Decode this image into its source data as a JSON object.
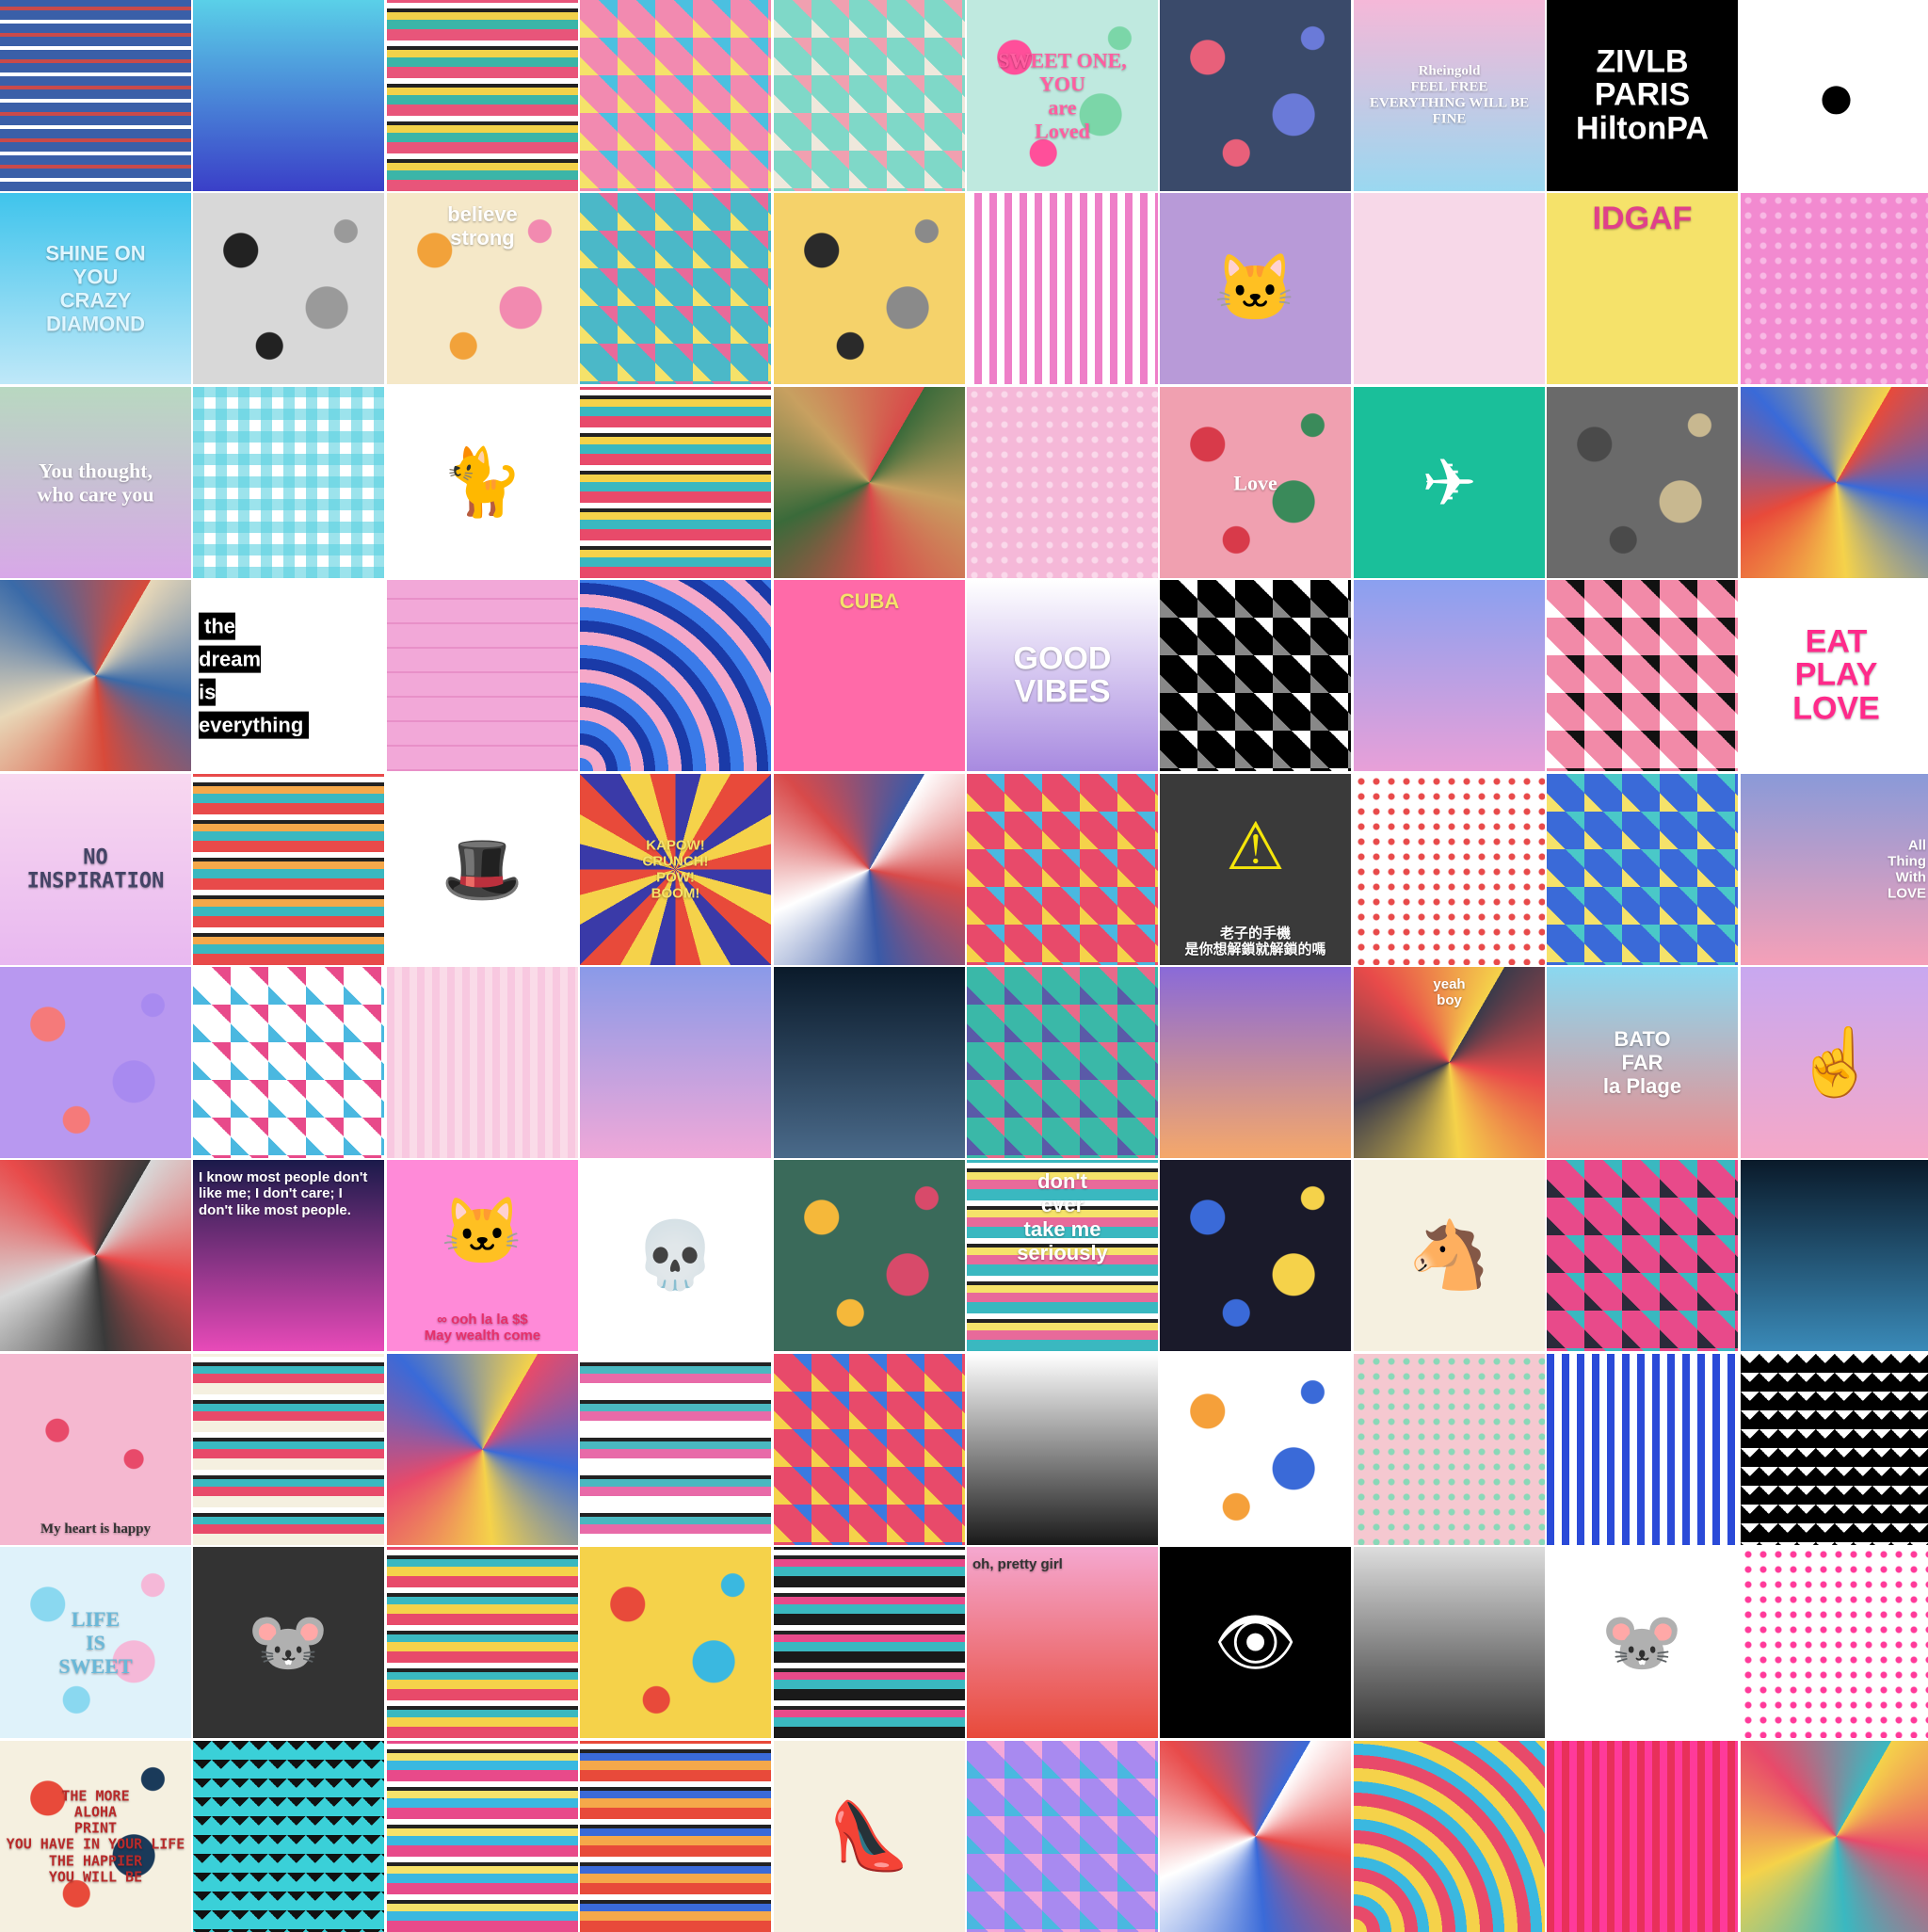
{
  "mosaic": {
    "rows": 10,
    "cols": 10,
    "tiles": [
      {
        "style": "plaid",
        "c1": "#3a5fa8",
        "c2": "#c94a4a",
        "c3": "#ffffff"
      },
      {
        "style": "gradient",
        "c1": "#5ad0e8",
        "c2": "#3a3fc8"
      },
      {
        "style": "tribal",
        "c1": "#e8557a",
        "c2": "#3bb5a8",
        "c3": "#f2d24a"
      },
      {
        "style": "triangles",
        "c1": "#f28ab0",
        "c2": "#4bc0e0",
        "c3": "#f5e26a"
      },
      {
        "style": "triangles",
        "c1": "#7fd8c8",
        "c2": "#f0a0b0",
        "c3": "#efe8dc"
      },
      {
        "style": "flowers",
        "c1": "#ff4f9a",
        "c2": "#7bd6a8",
        "c3": "#bfe9df",
        "text": "SWEET ONE,\nYOU\nare\nLoved",
        "textColor": "#ff5ea0",
        "font": "serif"
      },
      {
        "style": "flowers",
        "c1": "#e8607a",
        "c2": "#6a7ad8",
        "c3": "#3a4a6a"
      },
      {
        "style": "gradient",
        "c1": "#f5b8d8",
        "c2": "#9ad8f0",
        "text": "Rheingold\nFEEL FREE\nEVERYTHING WILL BE FINE",
        "textColor": "#ffffff",
        "font": "serif",
        "size": "small"
      },
      {
        "style": "text-bw",
        "c1": "#000000",
        "c2": "#ffffff",
        "text": "ZIVLB\nPARIS\nHiltonPA",
        "textColor": "#ffffff",
        "size": "big"
      },
      {
        "style": "icon",
        "c1": "#ffffff",
        "c2": "#000000",
        "icon": "mickey-icon",
        "glyph": "●"
      },
      {
        "style": "gradient",
        "c1": "#3fc4ec",
        "c2": "#bfe8f8",
        "text": "SHINE ON\nYOU\nCRAZY\nDIAMOND",
        "textColor": "#dff6ff"
      },
      {
        "style": "flowers",
        "c1": "#222222",
        "c2": "#9a9a9a",
        "c3": "#d8d8d8"
      },
      {
        "style": "flowers",
        "c1": "#f2a23a",
        "c2": "#f28ab0",
        "c3": "#f5e8c8",
        "text": "believe\nstrong",
        "textColor": "#ffffff",
        "position": "top"
      },
      {
        "style": "triangles",
        "c1": "#4bb8c8",
        "c2": "#e86a9a",
        "c3": "#f5e26a"
      },
      {
        "style": "flowers",
        "c1": "#2a2a2a",
        "c2": "#8a8a8a",
        "c3": "#f5d26a"
      },
      {
        "style": "stripes",
        "c1": "#ffffff",
        "c2": "#ee7fc8"
      },
      {
        "style": "icon",
        "c1": "#b89ad8",
        "c2": "#333333",
        "icon": "cat-icon",
        "glyph": "🐱"
      },
      {
        "style": "solid",
        "c1": "#f7d8e8",
        "c2": "#f2c8dc"
      },
      {
        "style": "text-bw",
        "c1": "#f5e26a",
        "c2": "#e04a8a",
        "text": "IDGAF",
        "textColor": "#e0408a",
        "size": "big",
        "position": "top"
      },
      {
        "style": "dots",
        "c1": "#f28ad0",
        "c2": "#f8b8e4"
      },
      {
        "style": "gradient",
        "c1": "#b8d8c0",
        "c2": "#d8a8e8",
        "text": "You thought,\nwho care you",
        "textColor": "#ffffff",
        "font": "serif"
      },
      {
        "style": "gingham",
        "c1": "#5ad0e0",
        "c2": "#ffffff"
      },
      {
        "style": "icon",
        "c1": "#ffffff",
        "c2": "#111111",
        "icon": "cat-icon",
        "glyph": "🐈"
      },
      {
        "style": "tribal",
        "c1": "#e84a6a",
        "c2": "#3ab8c0",
        "c3": "#f5d24a"
      },
      {
        "style": "collage",
        "c1": "#3a6a3a",
        "c2": "#c8a060",
        "c3": "#d84a4a"
      },
      {
        "style": "dots",
        "c1": "#f5b8d8",
        "c2": "#fad8ea"
      },
      {
        "style": "flowers",
        "c1": "#d83a4a",
        "c2": "#3a8a5a",
        "c3": "#f0a0b0",
        "text": "Love",
        "textColor": "#ffffff",
        "font": "serif"
      },
      {
        "style": "icon",
        "c1": "#1abf9a",
        "c2": "#ffffff",
        "icon": "paper-crane-icon",
        "glyph": "✈"
      },
      {
        "style": "flowers",
        "c1": "#4a4a4a",
        "c2": "#c8b890",
        "c3": "#6a6a6a"
      },
      {
        "style": "collage",
        "c1": "#e84a3a",
        "c2": "#3a6ad8",
        "c3": "#f5d24a"
      },
      {
        "style": "collage",
        "c1": "#e8d8b8",
        "c2": "#3a6aa8",
        "c3": "#d84a3a"
      },
      {
        "style": "text-bw",
        "c1": "#ffffff",
        "c2": "#000000",
        "text": "the\ndream\nis\neverything",
        "textColor": "#ffffff",
        "boxed": true,
        "align": "left"
      },
      {
        "style": "brick",
        "c1": "#f2a8d8",
        "c2": "#e890c8"
      },
      {
        "style": "waves",
        "c1": "#3a7ae8",
        "c2": "#f5a8c8",
        "c3": "#1a3aa8"
      },
      {
        "style": "solid",
        "c1": "#ff6aa8",
        "c2": "#f5d24a",
        "text": "CUBA",
        "textColor": "#f5e26a",
        "position": "top"
      },
      {
        "style": "gradient",
        "c1": "#ffffff",
        "c2": "#a88ae0",
        "text": "GOOD\nVIBES",
        "textColor": "#ffffff",
        "size": "big"
      },
      {
        "style": "triangles",
        "c1": "#000000",
        "c2": "#ffffff",
        "c3": "#888888"
      },
      {
        "style": "gradient",
        "c1": "#8aa0f0",
        "c2": "#e8a0d8"
      },
      {
        "style": "triangles",
        "c1": "#f28aa8",
        "c2": "#111111",
        "c3": "#ffffff"
      },
      {
        "style": "text-bw",
        "c1": "#ffffff",
        "c2": "#ff2a8a",
        "text": "EAT\nPLAY\nLOVE",
        "textColor": "#ff2a8a",
        "size": "big"
      },
      {
        "style": "gradient",
        "c1": "#f8d8f0",
        "c2": "#e8b8f0",
        "text": "NO\nINSPIRATION",
        "textColor": "#444466",
        "font": "mono"
      },
      {
        "style": "tribal",
        "c1": "#e84a4a",
        "c2": "#3ab8c0",
        "c3": "#f5a84a"
      },
      {
        "style": "icon",
        "c1": "#ffffff",
        "c2": "#111111",
        "icon": "cat-top-hat-icon",
        "glyph": "🎩"
      },
      {
        "style": "comic",
        "c1": "#3a3aa8",
        "c2": "#f5d24a",
        "c3": "#e84a3a",
        "text": "KAPOW!\nCRUNCH!\nPOW!\nBOOM!",
        "textColor": "#f5e26a",
        "size": "small"
      },
      {
        "style": "collage",
        "c1": "#ffffff",
        "c2": "#d84a4a",
        "c3": "#3a5aa8"
      },
      {
        "style": "triangles",
        "c1": "#e84a6a",
        "c2": "#4ab8e0",
        "c3": "#f5d24a"
      },
      {
        "style": "solid",
        "c1": "#3a3a3a",
        "c2": "#f5e60a",
        "text": "老子的手機\n是你想解鎖就解鎖的嗎",
        "textColor": "#ffffff",
        "position": "bottom",
        "size": "small",
        "icon": "warning-icon",
        "glyph": "⚠"
      },
      {
        "style": "dots",
        "c1": "#ffffff",
        "c2": "#e84a4a"
      },
      {
        "style": "triangles",
        "c1": "#3a6ad8",
        "c2": "#4ac8c8",
        "c3": "#f5e26a"
      },
      {
        "style": "gradient",
        "c1": "#8a9ad8",
        "c2": "#f5a0b8",
        "text": "All\nThing\nWith\nLOVE",
        "textColor": "#ffffff",
        "align": "right",
        "size": "small"
      },
      {
        "style": "flowers",
        "c1": "#f57a7a",
        "c2": "#a88af0",
        "c3": "#b898f0"
      },
      {
        "style": "triangles",
        "c1": "#ffffff",
        "c2": "#e84a8a",
        "c3": "#4ab8e0"
      },
      {
        "style": "stripes",
        "c1": "#f8c8e0",
        "c2": "#fadbe8"
      },
      {
        "style": "gradient",
        "c1": "#8a9ae8",
        "c2": "#f0a8d8"
      },
      {
        "style": "gradient",
        "c1": "#0a1a2a",
        "c2": "#4a6a8a"
      },
      {
        "style": "triangles",
        "c1": "#3ab8a8",
        "c2": "#e86a8a",
        "c3": "#5a5aa8"
      },
      {
        "style": "gradient",
        "c1": "#8a6ad8",
        "c2": "#f5a86a"
      },
      {
        "style": "collage",
        "c1": "#3a3a4a",
        "c2": "#e84a4a",
        "c3": "#f5d24a",
        "text": "yeah\nboy",
        "textColor": "#ffffff",
        "position": "top",
        "size": "small"
      },
      {
        "style": "gradient",
        "c1": "#8ad8f0",
        "c2": "#f08a8a",
        "text": "BATO\nFAR\nla Plage",
        "textColor": "#ffffff"
      },
      {
        "style": "gradient",
        "c1": "#c8a8f0",
        "c2": "#f5a8c8",
        "icon": "cursor-hand-icon",
        "glyph": "☝"
      },
      {
        "style": "collage",
        "c1": "#d8d8d8",
        "c2": "#e84a4a",
        "c3": "#3a3a3a"
      },
      {
        "style": "gradient",
        "c1": "#1a1a4a",
        "c2": "#e84ab8",
        "text": "I know most people don't\nlike me; I don't care; I\ndon't like most people.",
        "textColor": "#ffffff",
        "position": "top",
        "size": "small",
        "align": "left"
      },
      {
        "style": "solid",
        "c1": "#ff8ad8",
        "c2": "#ffffff",
        "text": "∞ ooh la la $$\nMay wealth come",
        "textColor": "#e8306a",
        "position": "bottom",
        "size": "small",
        "icon": "lucky-cat-icon",
        "glyph": "🐱"
      },
      {
        "style": "icon",
        "c1": "#ffffff",
        "c2": "#222222",
        "icon": "skull-icon",
        "glyph": "💀"
      },
      {
        "style": "flowers",
        "c1": "#f5b83a",
        "c2": "#d84a6a",
        "c3": "#3a6a5a"
      },
      {
        "style": "tribal",
        "c1": "#3ab8c0",
        "c2": "#e86a9a",
        "c3": "#f5e26a",
        "text": "don't\never\ntake me\nseriously",
        "textColor": "#ffffff",
        "position": "top"
      },
      {
        "style": "flowers",
        "c1": "#3a6ad8",
        "c2": "#f5d24a",
        "c3": "#1a1a2a"
      },
      {
        "style": "icon",
        "c1": "#f5f0e0",
        "c2": "#3a5a9a",
        "icon": "horse-icon",
        "glyph": "🐴"
      },
      {
        "style": "triangles",
        "c1": "#e84a8a",
        "c2": "#3ab8c0",
        "c3": "#2a2a3a"
      },
      {
        "style": "gradient",
        "c1": "#0a1a2a",
        "c2": "#3a8ab8"
      },
      {
        "style": "hearts",
        "c1": "#f5b8d0",
        "c2": "#e84a6a",
        "text": "My heart is happy",
        "textColor": "#333333",
        "position": "bottom",
        "size": "small",
        "font": "serif"
      },
      {
        "style": "tribal",
        "c1": "#f5f0e0",
        "c2": "#e84a6a",
        "c3": "#3ab8c0"
      },
      {
        "style": "collage",
        "c1": "#e84a6a",
        "c2": "#3a6ad8",
        "c3": "#f5d24a"
      },
      {
        "style": "tribal",
        "c1": "#ffffff",
        "c2": "#e86aa8",
        "c3": "#4ab8c0"
      },
      {
        "style": "triangles",
        "c1": "#e84a6a",
        "c2": "#3a7ae0",
        "c3": "#f5d24a"
      },
      {
        "style": "gradient",
        "c1": "#ffffff",
        "c2": "#1a1a1a"
      },
      {
        "style": "flowers",
        "c1": "#f5a03a",
        "c2": "#3a6ad8",
        "c3": "#ffffff"
      },
      {
        "style": "dots",
        "c1": "#f5c8d0",
        "c2": "#8ad8b8"
      },
      {
        "style": "stripes",
        "c1": "#2a4ad8",
        "c2": "#ffffff"
      },
      {
        "style": "zigzag",
        "c1": "#000000",
        "c2": "#ffffff"
      },
      {
        "style": "flowers",
        "c1": "#8ad8f0",
        "c2": "#f5b8d8",
        "c3": "#dff2fa",
        "text": "LIFE\nIS\nSWEET",
        "textColor": "#6ab8d8",
        "font": "serif"
      },
      {
        "style": "icon",
        "c1": "#333333",
        "c2": "#f5d24a",
        "icon": "mickey-icon",
        "glyph": "🐭"
      },
      {
        "style": "tribal",
        "c1": "#e84a6a",
        "c2": "#f5d24a",
        "c3": "#3ab8c0"
      },
      {
        "style": "flowers",
        "c1": "#e84a3a",
        "c2": "#3ab8e0",
        "c3": "#f5d24a"
      },
      {
        "style": "tribal",
        "c1": "#1a1a1a",
        "c2": "#3ab8c0",
        "c3": "#e84a8a"
      },
      {
        "style": "gradient",
        "c1": "#f5a8d0",
        "c2": "#e84a3a",
        "text": "oh, pretty girl",
        "textColor": "#333333",
        "position": "top",
        "size": "small",
        "align": "left"
      },
      {
        "style": "icon",
        "c1": "#000000",
        "c2": "#ffffff",
        "icon": "eye-icon",
        "glyph": "👁"
      },
      {
        "style": "gradient",
        "c1": "#dddddd",
        "c2": "#333333"
      },
      {
        "style": "icon",
        "c1": "#ffffff",
        "c2": "#111111",
        "icon": "mickey-icon",
        "glyph": "🐭"
      },
      {
        "style": "dots",
        "c1": "#ffffff",
        "c2": "#ff3a9a"
      },
      {
        "style": "flowers",
        "c1": "#e84a3a",
        "c2": "#1a3a5a",
        "c3": "#f5f0e0",
        "text": "THE MORE\nALOHA\nPRINT\nYOU HAVE IN YOUR LIFE\nTHE HAPPIER\nYOU WILL BE",
        "textColor": "#b82a2a",
        "size": "small",
        "font": "mono"
      },
      {
        "style": "zigzag",
        "c1": "#3ad0d8",
        "c2": "#111111"
      },
      {
        "style": "tribal",
        "c1": "#e84a8a",
        "c2": "#3ab8e0",
        "c3": "#f5e26a"
      },
      {
        "style": "tribal",
        "c1": "#e84a3a",
        "c2": "#f5a84a",
        "c3": "#3a6ad8"
      },
      {
        "style": "icon",
        "c1": "#f5f0e0",
        "c2": "#3a5a8a",
        "icon": "shoe-icon",
        "glyph": "👠"
      },
      {
        "style": "triangles",
        "c1": "#a88af0",
        "c2": "#f5a8d8",
        "c3": "#4ab8e0"
      },
      {
        "style": "collage",
        "c1": "#ffffff",
        "c2": "#e84a4a",
        "c3": "#3a6ad8"
      },
      {
        "style": "waves",
        "c1": "#f5d24a",
        "c2": "#e84a6a",
        "c3": "#3ab8e0"
      },
      {
        "style": "stripes",
        "c1": "#e8305a",
        "c2": "#ff3a9a"
      },
      {
        "style": "collage",
        "c1": "#f5d24a",
        "c2": "#e84a6a",
        "c3": "#3ab8c0"
      }
    ]
  }
}
